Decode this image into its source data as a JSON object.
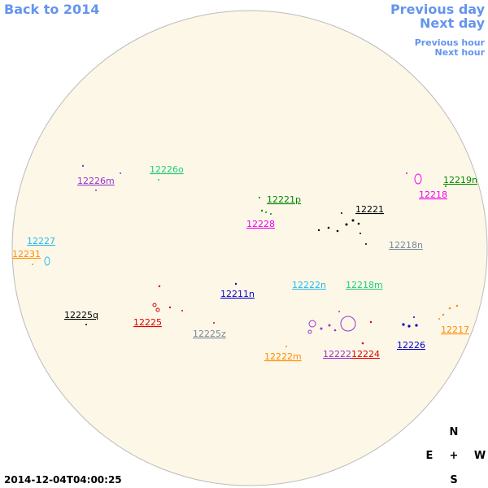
{
  "nav": {
    "back": "Back to 2014",
    "previous_day": "Previous day",
    "next_day": "Next day",
    "previous_hour": "Previous hour",
    "next_hour": "Next hour"
  },
  "regions": [
    {
      "label": "12226m",
      "color": "#9933cc"
    },
    {
      "label": "12226o",
      "color": "#22cc77"
    },
    {
      "label": "12221p",
      "color": "#008800"
    },
    {
      "label": "12221",
      "color": "#000000"
    },
    {
      "label": "12228",
      "color": "#ee00ee"
    },
    {
      "label": "12218",
      "color": "#ee00ee"
    },
    {
      "label": "12219n",
      "color": "#008800"
    },
    {
      "label": "12227",
      "color": "#22bbee"
    },
    {
      "label": "12231",
      "color": "#ff8c00"
    },
    {
      "label": "12218n",
      "color": "#778899"
    },
    {
      "label": "12222n",
      "color": "#22bbee"
    },
    {
      "label": "12218m",
      "color": "#22cc77"
    },
    {
      "label": "12211n",
      "color": "#0000cc"
    },
    {
      "label": "12225q",
      "color": "#000000"
    },
    {
      "label": "12225",
      "color": "#dd0000"
    },
    {
      "label": "12225z",
      "color": "#778899"
    },
    {
      "label": "12217",
      "color": "#ff8c00"
    },
    {
      "label": "12226",
      "color": "#0000cc"
    },
    {
      "label": "12222m",
      "color": "#ff8c00"
    },
    {
      "label": "12222",
      "color": "#9933cc"
    },
    {
      "label": "12224",
      "color": "#dd0000"
    }
  ],
  "compass": {
    "north": "N",
    "east": "E",
    "center": "+",
    "west": "W",
    "south": "S"
  },
  "timestamp": "2014-12-04T04:00:25"
}
